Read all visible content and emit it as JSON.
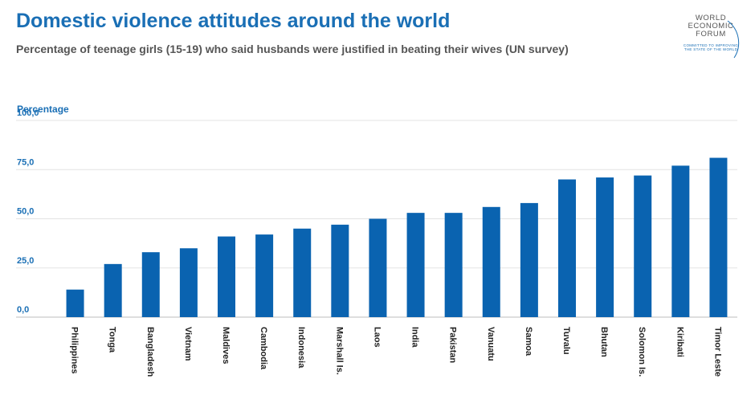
{
  "header": {
    "title": "Domestic violence attitudes around the world",
    "subtitle": "Percentage of teenage girls (15-19) who said husbands were justified in beating their wives (UN survey)"
  },
  "logo": {
    "line1": "WORLD",
    "line2": "ECONOMIC",
    "line3": "FORUM",
    "tagline": "COMMITTED TO IMPROVING THE STATE OF THE WORLD"
  },
  "colors": {
    "bar": "#0a63b0",
    "accent": "#1a6fb5",
    "grid": "#e3e3e3"
  },
  "chart_data": {
    "type": "bar",
    "title": "Domestic violence attitudes around the world",
    "subtitle": "Percentage of teenage girls (15-19) who said husbands were justified in beating their wives (UN survey)",
    "xlabel": "",
    "ylabel": "Percentage",
    "ylim": [
      0,
      100
    ],
    "yticks": [
      "0,0",
      "25,0",
      "50,0",
      "75,0",
      "100,0"
    ],
    "yticks_values": [
      0,
      25,
      50,
      75,
      100
    ],
    "grid": true,
    "categories": [
      "Philippines",
      "Tonga",
      "Bangladesh",
      "Vietnam",
      "Maldives",
      "Cambodia",
      "Indonesia",
      "Marshall Is.",
      "Laos",
      "India",
      "Pakistan",
      "Vanuatu",
      "Samoa",
      "Tuvalu",
      "Bhutan",
      "Solomon Is.",
      "Kiribati",
      "Timor Leste"
    ],
    "values": [
      14,
      27,
      33,
      35,
      41,
      42,
      45,
      47,
      50,
      53,
      53,
      56,
      58,
      70,
      71,
      72,
      77,
      81
    ]
  }
}
